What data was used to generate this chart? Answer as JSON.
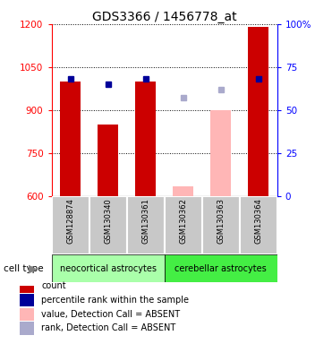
{
  "title": "GDS3366 / 1456778_at",
  "samples": [
    "GSM128874",
    "GSM130340",
    "GSM130361",
    "GSM130362",
    "GSM130363",
    "GSM130364"
  ],
  "ylim": [
    600,
    1200
  ],
  "yticks": [
    600,
    750,
    900,
    1050,
    1200
  ],
  "y2lim": [
    0,
    100
  ],
  "y2ticks": [
    0,
    25,
    50,
    75,
    100
  ],
  "y2ticklabels": [
    "0",
    "25",
    "50",
    "75",
    "100%"
  ],
  "count_color": "#CC0000",
  "count_absent_color": "#FFB6B6",
  "rank_color": "#000099",
  "rank_absent_color": "#AAAACC",
  "count_values": [
    1000,
    850,
    1000,
    null,
    null,
    1190
  ],
  "count_absent_values": [
    null,
    null,
    null,
    635,
    900,
    null
  ],
  "rank_values": [
    68,
    65,
    68,
    null,
    null,
    68
  ],
  "rank_absent_values": [
    null,
    null,
    null,
    57,
    62,
    null
  ],
  "neo_color": "#AAFFAA",
  "cer_color": "#44EE44",
  "gray_color": "#C8C8C8",
  "legend_items": [
    {
      "label": "count",
      "color": "#CC0000"
    },
    {
      "label": "percentile rank within the sample",
      "color": "#000099"
    },
    {
      "label": "value, Detection Call = ABSENT",
      "color": "#FFB6B6"
    },
    {
      "label": "rank, Detection Call = ABSENT",
      "color": "#AAAACC"
    }
  ]
}
